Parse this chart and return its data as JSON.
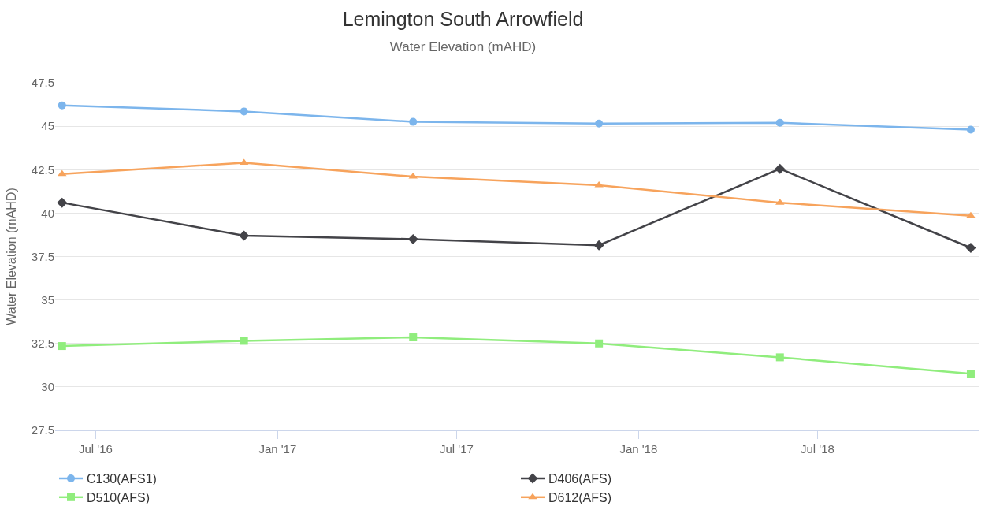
{
  "chart_data": {
    "type": "line",
    "title": "Lemington South Arrowfield",
    "subtitle": "Water Elevation (mAHD)",
    "ylabel": "Water Elevation (mAHD)",
    "x": [
      "2016-05-28",
      "2016-11-28",
      "2017-05-18",
      "2017-11-22",
      "2018-05-24",
      "2018-12-03"
    ],
    "series": [
      {
        "name": "C130(AFS1)",
        "color": "#7cb5ec",
        "marker": "circle",
        "values": [
          46.2,
          45.85,
          45.25,
          45.15,
          45.2,
          44.8
        ]
      },
      {
        "name": "D406(AFS)",
        "color": "#434348",
        "marker": "diamond",
        "values": [
          40.6,
          38.7,
          38.5,
          38.15,
          42.55,
          38.0
        ]
      },
      {
        "name": "D510(AFS)",
        "color": "#90ed7d",
        "marker": "square",
        "values": [
          32.35,
          32.65,
          32.85,
          32.5,
          31.7,
          30.75
        ]
      },
      {
        "name": "D612(AFS)",
        "color": "#f7a35c",
        "marker": "triangle",
        "values": [
          42.25,
          42.9,
          42.1,
          41.6,
          40.6,
          39.85
        ]
      }
    ],
    "xlim": [
      "2016-05-21",
      "2018-12-11"
    ],
    "xticks": [
      {
        "value": "2016-07-01",
        "label": "Jul '16"
      },
      {
        "value": "2017-01-01",
        "label": "Jan '17"
      },
      {
        "value": "2017-07-01",
        "label": "Jul '17"
      },
      {
        "value": "2018-01-01",
        "label": "Jan '18"
      },
      {
        "value": "2018-07-01",
        "label": "Jul '18"
      }
    ],
    "ylim": [
      27.5,
      47.5
    ],
    "yticks": [
      {
        "value": 27.5,
        "label": "27.5"
      },
      {
        "value": 30,
        "label": "30"
      },
      {
        "value": 32.5,
        "label": "32.5"
      },
      {
        "value": 35,
        "label": "35"
      },
      {
        "value": 37.5,
        "label": "37.5"
      },
      {
        "value": 40,
        "label": "40"
      },
      {
        "value": 42.5,
        "label": "42.5"
      },
      {
        "value": 45,
        "label": "45"
      },
      {
        "value": 47.5,
        "label": "47.5"
      }
    ],
    "grid": "y",
    "legend": "bottom",
    "line_style": "solid"
  }
}
